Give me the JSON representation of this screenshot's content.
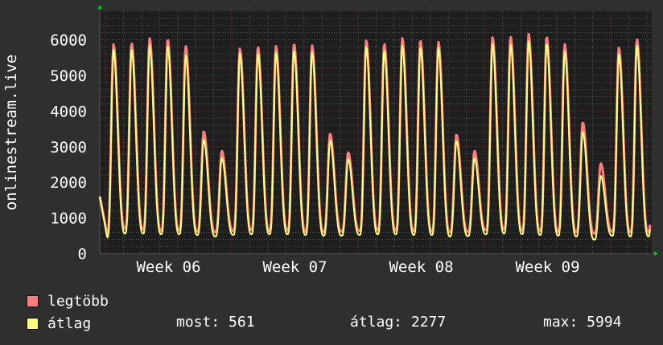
{
  "chart_data": {
    "type": "line",
    "ylabel": "onlinestream.live",
    "ylim": [
      0,
      6800
    ],
    "y_ticks": [
      "0",
      "1000",
      "2000",
      "3000",
      "4000",
      "5000",
      "6000"
    ],
    "x_ticks": [
      "Week 06",
      "Week 07",
      "Week 08",
      "Week 09"
    ],
    "grid": true,
    "colors": {
      "background": "#2f2f2f",
      "plot": "#1e1e1e",
      "major_grid": "#7a3333",
      "minor_grid": "#555555",
      "max": "#ff7f7f",
      "avg": "#ffff80",
      "arrow": "#00cc00"
    },
    "series": [
      {
        "name": "legtöbb",
        "daily_peaks": [
          5870,
          5910,
          6040,
          6020,
          5820,
          3430,
          2880,
          5750,
          5800,
          5820,
          5890,
          5840,
          3360,
          2840,
          5980,
          5890,
          6040,
          5990,
          5940,
          3340,
          2880,
          6070,
          6090,
          6160,
          6090,
          5870,
          3680,
          2530,
          5780,
          6020
        ],
        "daily_troughs": [
          520,
          700,
          680,
          640,
          650,
          620,
          600,
          640,
          660,
          640,
          650,
          620,
          600,
          620,
          640,
          660,
          650,
          640,
          620,
          600,
          610,
          660,
          680,
          650,
          640,
          620,
          600,
          560,
          620,
          600
        ]
      },
      {
        "name": "átlag",
        "daily_peaks": [
          5720,
          5740,
          5850,
          5840,
          5560,
          3200,
          2680,
          5620,
          5630,
          5640,
          5700,
          5660,
          3180,
          2660,
          5800,
          5700,
          5830,
          5800,
          5780,
          3160,
          2680,
          5900,
          5880,
          5960,
          5900,
          5680,
          3420,
          2180,
          5600,
          5860
        ],
        "daily_troughs": [
          440,
          560,
          560,
          540,
          540,
          520,
          480,
          520,
          540,
          540,
          540,
          520,
          500,
          500,
          520,
          540,
          540,
          520,
          520,
          480,
          490,
          540,
          560,
          540,
          520,
          500,
          480,
          390,
          500,
          480
        ]
      }
    ],
    "start_value": 1600,
    "legend": [
      {
        "label": "legtöbb",
        "color": "#ff7f7f"
      },
      {
        "label": "átlag",
        "color": "#ffff80"
      }
    ],
    "stats": {
      "most": "most: 561",
      "atlag": "átlag: 2277",
      "max": "max: 5994"
    }
  }
}
